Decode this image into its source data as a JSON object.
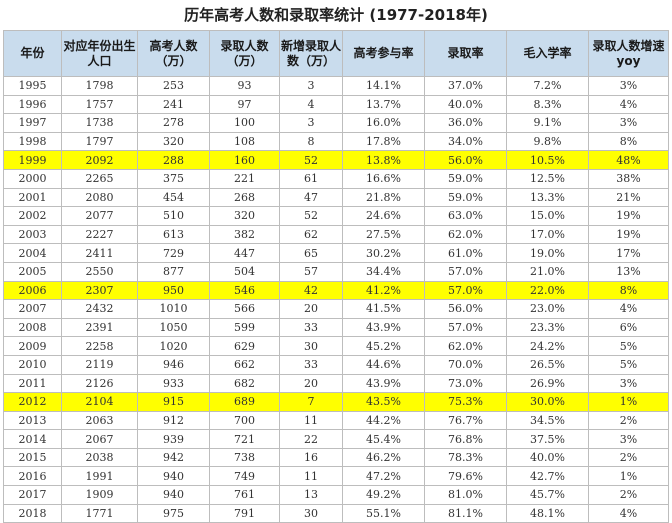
{
  "title": "历年高考人数和录取率统计 (1977-2018年)",
  "colors": {
    "header_bg": "#c9dced",
    "highlight": "#ffff00"
  },
  "columns": [
    "年份",
    "对应年份出生人口",
    "高考人数（万）",
    "录取人数（万）",
    "新增录取人数（万）",
    "高考参与率",
    "录取率",
    "毛入学率",
    "录取人数增速yoy"
  ],
  "highlight_years": [
    "1999",
    "2006",
    "2012"
  ],
  "rows": [
    [
      "1995",
      "1798",
      "253",
      "93",
      "3",
      "14.1%",
      "37.0%",
      "7.2%",
      "3%"
    ],
    [
      "1996",
      "1757",
      "241",
      "97",
      "4",
      "13.7%",
      "40.0%",
      "8.3%",
      "4%"
    ],
    [
      "1997",
      "1738",
      "278",
      "100",
      "3",
      "16.0%",
      "36.0%",
      "9.1%",
      "3%"
    ],
    [
      "1998",
      "1797",
      "320",
      "108",
      "8",
      "17.8%",
      "34.0%",
      "9.8%",
      "8%"
    ],
    [
      "1999",
      "2092",
      "288",
      "160",
      "52",
      "13.8%",
      "56.0%",
      "10.5%",
      "48%"
    ],
    [
      "2000",
      "2265",
      "375",
      "221",
      "61",
      "16.6%",
      "59.0%",
      "12.5%",
      "38%"
    ],
    [
      "2001",
      "2080",
      "454",
      "268",
      "47",
      "21.8%",
      "59.0%",
      "13.3%",
      "21%"
    ],
    [
      "2002",
      "2077",
      "510",
      "320",
      "52",
      "24.6%",
      "63.0%",
      "15.0%",
      "19%"
    ],
    [
      "2003",
      "2227",
      "613",
      "382",
      "62",
      "27.5%",
      "62.0%",
      "17.0%",
      "19%"
    ],
    [
      "2004",
      "2411",
      "729",
      "447",
      "65",
      "30.2%",
      "61.0%",
      "19.0%",
      "17%"
    ],
    [
      "2005",
      "2550",
      "877",
      "504",
      "57",
      "34.4%",
      "57.0%",
      "21.0%",
      "13%"
    ],
    [
      "2006",
      "2307",
      "950",
      "546",
      "42",
      "41.2%",
      "57.0%",
      "22.0%",
      "8%"
    ],
    [
      "2007",
      "2432",
      "1010",
      "566",
      "20",
      "41.5%",
      "56.0%",
      "23.0%",
      "4%"
    ],
    [
      "2008",
      "2391",
      "1050",
      "599",
      "33",
      "43.9%",
      "57.0%",
      "23.3%",
      "6%"
    ],
    [
      "2009",
      "2258",
      "1020",
      "629",
      "30",
      "45.2%",
      "62.0%",
      "24.2%",
      "5%"
    ],
    [
      "2010",
      "2119",
      "946",
      "662",
      "33",
      "44.6%",
      "70.0%",
      "26.5%",
      "5%"
    ],
    [
      "2011",
      "2126",
      "933",
      "682",
      "20",
      "43.9%",
      "73.0%",
      "26.9%",
      "3%"
    ],
    [
      "2012",
      "2104",
      "915",
      "689",
      "7",
      "43.5%",
      "75.3%",
      "30.0%",
      "1%"
    ],
    [
      "2013",
      "2063",
      "912",
      "700",
      "11",
      "44.2%",
      "76.7%",
      "34.5%",
      "2%"
    ],
    [
      "2014",
      "2067",
      "939",
      "721",
      "22",
      "45.4%",
      "76.8%",
      "37.5%",
      "3%"
    ],
    [
      "2015",
      "2038",
      "942",
      "738",
      "16",
      "46.2%",
      "78.3%",
      "40.0%",
      "2%"
    ],
    [
      "2016",
      "1991",
      "940",
      "749",
      "11",
      "47.2%",
      "79.6%",
      "42.7%",
      "1%"
    ],
    [
      "2017",
      "1909",
      "940",
      "761",
      "13",
      "49.2%",
      "81.0%",
      "45.7%",
      "2%"
    ],
    [
      "2018",
      "1771",
      "975",
      "791",
      "30",
      "55.1%",
      "81.1%",
      "48.1%",
      "4%"
    ]
  ]
}
